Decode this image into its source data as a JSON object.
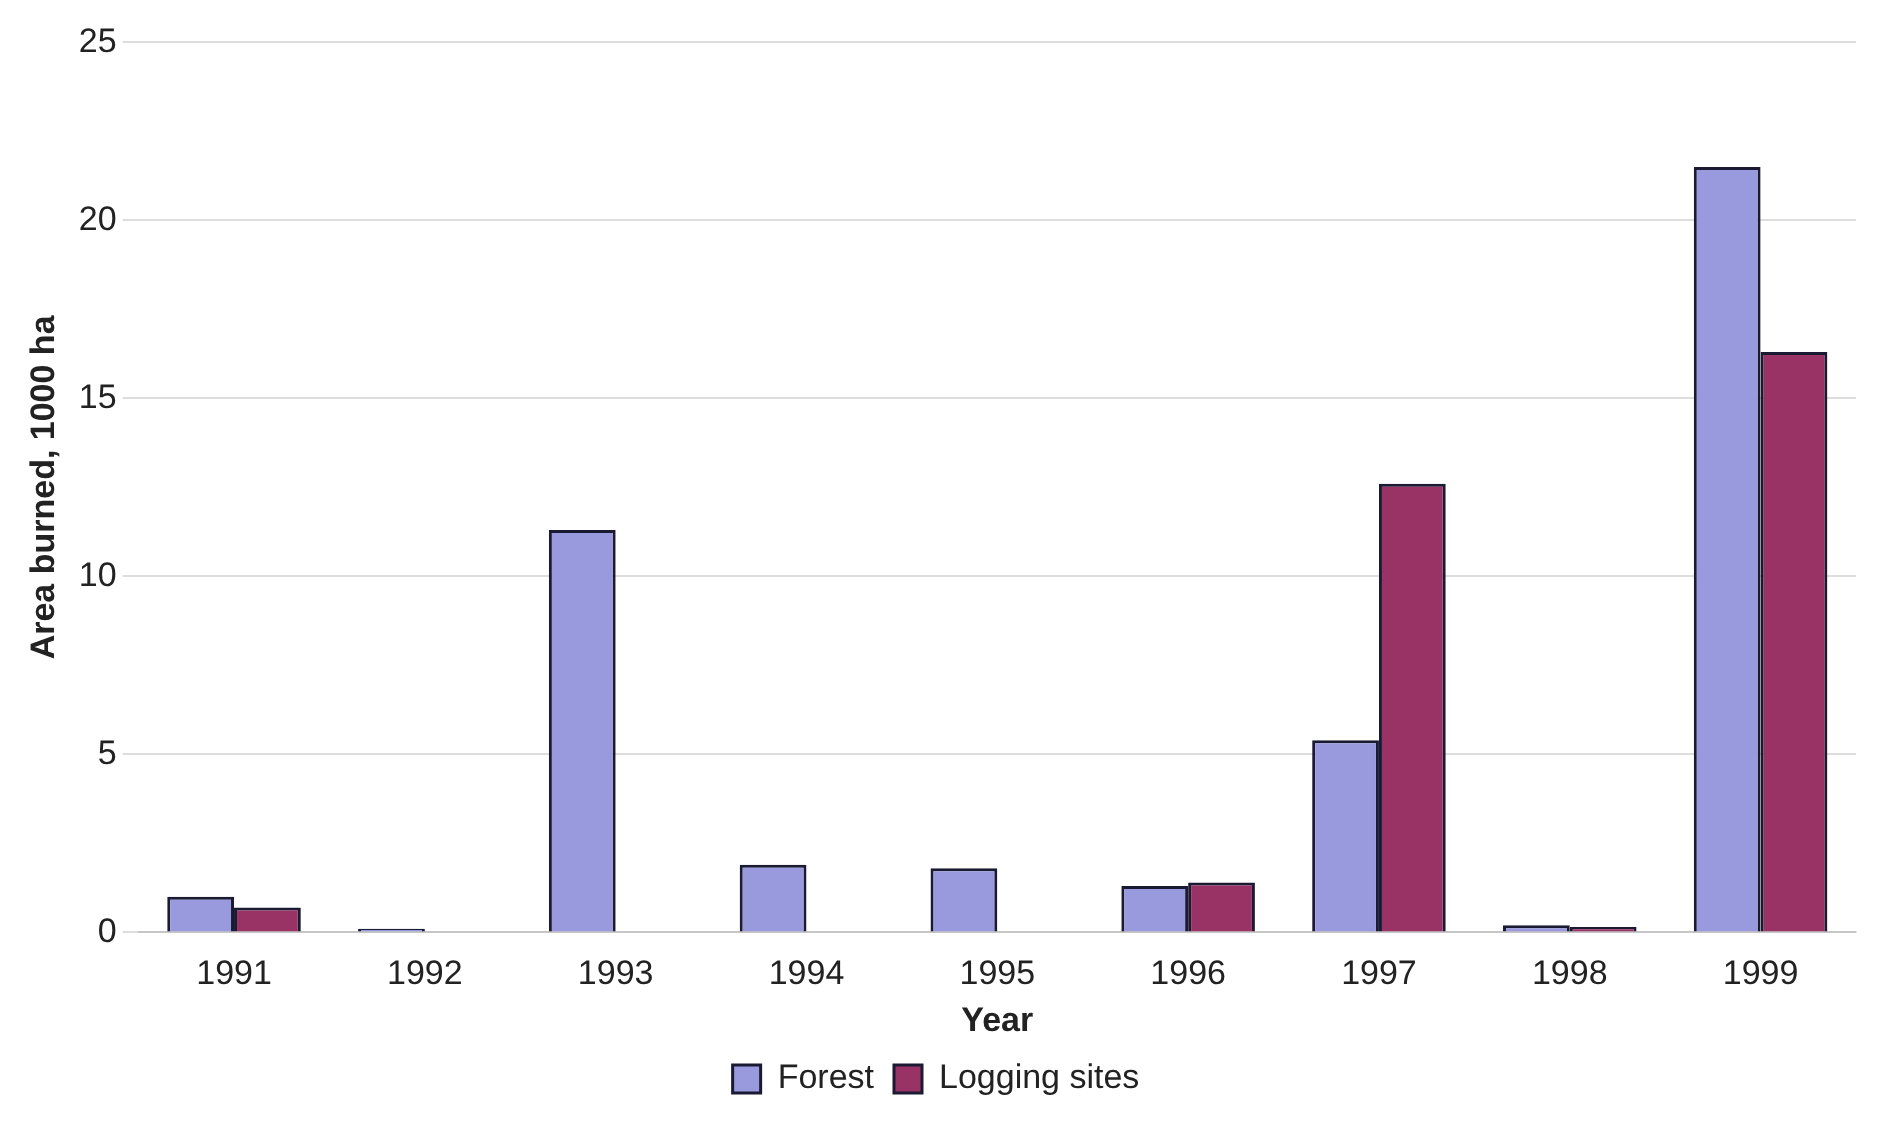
{
  "chart_data": {
    "type": "bar",
    "xlabel": "Year",
    "ylabel": "Area burned, 1000 ha",
    "categories": [
      "1991",
      "1992",
      "1993",
      "1994",
      "1995",
      "1996",
      "1997",
      "1998",
      "1999"
    ],
    "series": [
      {
        "name": "Forest",
        "color": "#9999dd",
        "values": [
          1.0,
          0.1,
          11.3,
          1.9,
          1.8,
          1.3,
          5.4,
          0.2,
          21.5
        ]
      },
      {
        "name": "Logging sites",
        "color": "#993366",
        "values": [
          0.7,
          null,
          null,
          null,
          null,
          1.4,
          12.6,
          0.15,
          16.3
        ]
      }
    ],
    "ylim": [
      0,
      25
    ],
    "yticks": [
      0,
      5,
      10,
      15,
      20,
      25
    ],
    "grid": "y",
    "legend": "bottom"
  }
}
